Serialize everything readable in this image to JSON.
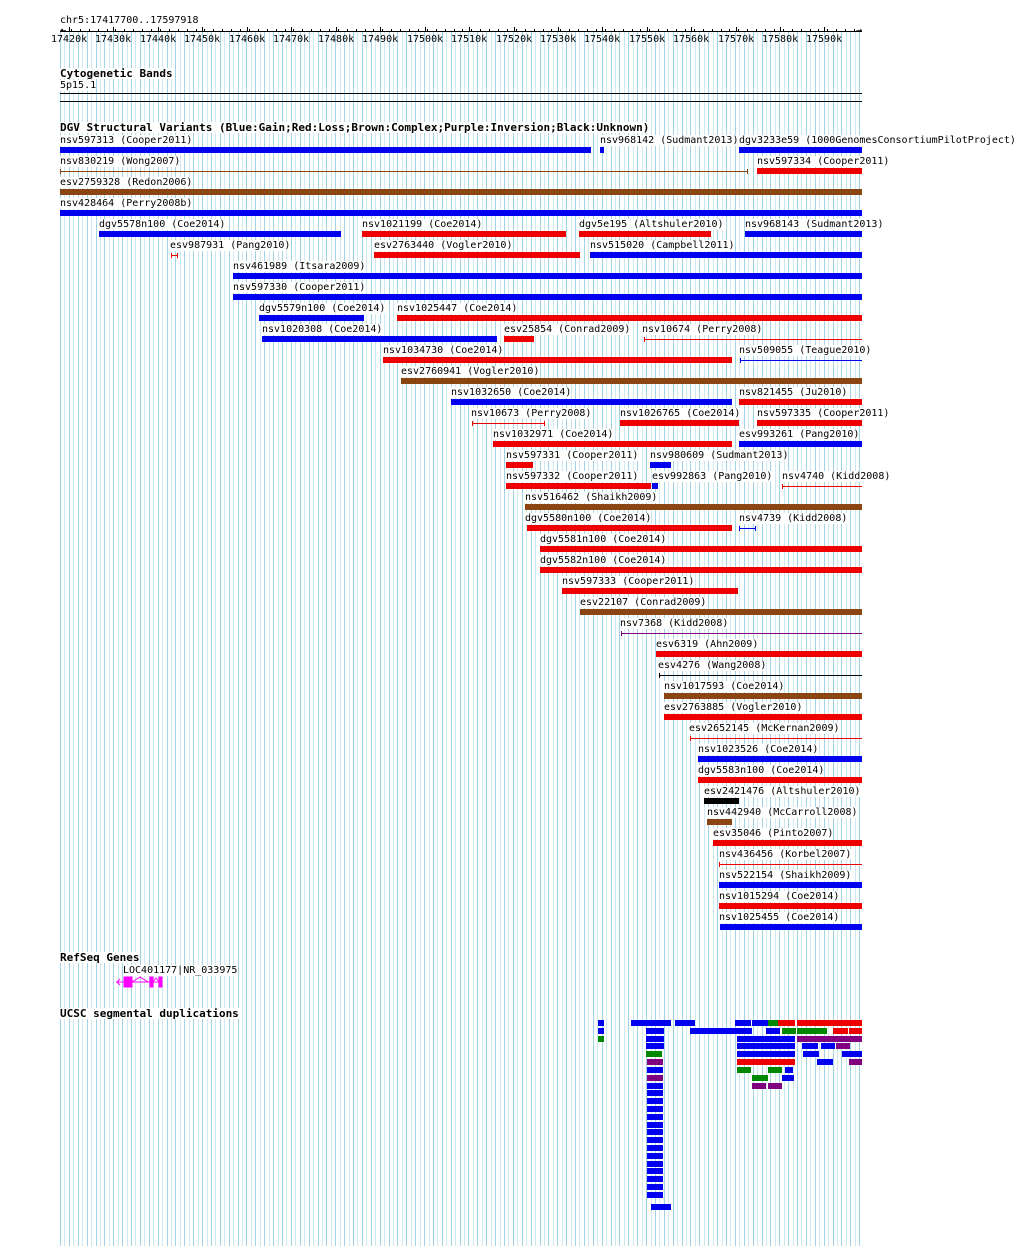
{
  "browser": {
    "position_label": "chr5:17417700..17597918",
    "ruler_labels": [
      "17420k",
      "17430k",
      "17440k",
      "17450k",
      "17460k",
      "17470k",
      "17480k",
      "17490k",
      "17500k",
      "17510k",
      "17520k",
      "17530k",
      "17540k",
      "17550k",
      "17560k",
      "17570k",
      "17580k",
      "17590k"
    ]
  },
  "tracks": {
    "cytoband": {
      "title": "Cytogenetic Bands",
      "band": "5p15.1"
    },
    "dgv": {
      "title": "DGV Structural Variants (Blue:Gain;Red:Loss;Brown:Complex;Purple:Inversion;Black:Unknown)",
      "colors": {
        "gain": "#0000ee",
        "loss": "#ee0000",
        "complex": "#8b4513",
        "inversion": "#800080",
        "unknown": "#000000"
      }
    },
    "refseq": {
      "title": "RefSeq Genes",
      "gene_label": "LOC401177|NR_033975",
      "color": "#ff00ff"
    },
    "segdup": {
      "title": "UCSC segmental duplications",
      "colors": {
        "blue": "#0000ee",
        "green": "#008800",
        "red": "#ee0000",
        "purple": "#800080"
      }
    }
  },
  "variants": [
    {
      "label": "nsv597313 (Cooper2011)",
      "type": "gain",
      "style": "bar"
    },
    {
      "label": "nsv968142 (Sudmant2013)",
      "type": "gain",
      "style": "bar"
    },
    {
      "label": "dgv3233e59 (1000GenomesConsortiumPilotProject)",
      "type": "gain",
      "style": "bar"
    },
    {
      "label": "nsv830219 (Wong2007)",
      "type": "complex",
      "style": "line"
    },
    {
      "label": "nsv597334 (Cooper2011)",
      "type": "loss",
      "style": "bar"
    },
    {
      "label": "esv2759328 (Redon2006)",
      "type": "complex",
      "style": "bar"
    },
    {
      "label": "nsv428464 (Perry2008b)",
      "type": "gain",
      "style": "bar"
    },
    {
      "label": "dgv5578n100 (Coe2014)",
      "type": "gain",
      "style": "bar"
    },
    {
      "label": "nsv1021199 (Coe2014)",
      "type": "loss",
      "style": "bar"
    },
    {
      "label": "dgv5e195 (Altshuler2010)",
      "type": "loss",
      "style": "bar"
    },
    {
      "label": "nsv968143 (Sudmant2013)",
      "type": "gain",
      "style": "bar"
    },
    {
      "label": "esv987931 (Pang2010)",
      "type": "loss",
      "style": "line"
    },
    {
      "label": "esv2763440 (Vogler2010)",
      "type": "loss",
      "style": "bar"
    },
    {
      "label": "nsv515020 (Campbell2011)",
      "type": "gain",
      "style": "bar"
    },
    {
      "label": "nsv461989 (Itsara2009)",
      "type": "gain",
      "style": "bar"
    },
    {
      "label": "nsv597330 (Cooper2011)",
      "type": "gain",
      "style": "bar"
    },
    {
      "label": "dgv5579n100 (Coe2014)",
      "type": "gain",
      "style": "bar"
    },
    {
      "label": "nsv1025447 (Coe2014)",
      "type": "loss",
      "style": "bar"
    },
    {
      "label": "nsv1020308 (Coe2014)",
      "type": "gain",
      "style": "bar"
    },
    {
      "label": "esv25854 (Conrad2009)",
      "type": "loss",
      "style": "bar"
    },
    {
      "label": "nsv10674 (Perry2008)",
      "type": "loss",
      "style": "line"
    },
    {
      "label": "nsv1034730 (Coe2014)",
      "type": "loss",
      "style": "bar"
    },
    {
      "label": "nsv509055 (Teague2010)",
      "type": "gain",
      "style": "line"
    },
    {
      "label": "esv2760941 (Vogler2010)",
      "type": "complex",
      "style": "bar"
    },
    {
      "label": "nsv1032650 (Coe2014)",
      "type": "gain",
      "style": "bar"
    },
    {
      "label": "nsv821455 (Ju2010)",
      "type": "loss",
      "style": "bar"
    },
    {
      "label": "nsv10673 (Perry2008)",
      "type": "loss",
      "style": "line"
    },
    {
      "label": "nsv1026765 (Coe2014)",
      "type": "loss",
      "style": "bar"
    },
    {
      "label": "nsv597335 (Cooper2011)",
      "type": "loss",
      "style": "bar"
    },
    {
      "label": "nsv1032971 (Coe2014)",
      "type": "loss",
      "style": "bar"
    },
    {
      "label": "esv993261 (Pang2010)",
      "type": "gain",
      "style": "bar"
    },
    {
      "label": "nsv597331 (Cooper2011)",
      "type": "loss",
      "style": "bar"
    },
    {
      "label": "nsv980609 (Sudmant2013)",
      "type": "gain",
      "style": "bar"
    },
    {
      "label": "nsv597332 (Cooper2011)",
      "type": "loss",
      "style": "bar"
    },
    {
      "label": "esv992863 (Pang2010)",
      "type": "gain",
      "style": "bar"
    },
    {
      "label": "nsv4740 (Kidd2008)",
      "type": "loss",
      "style": "line"
    },
    {
      "label": "nsv516462 (Shaikh2009)",
      "type": "complex",
      "style": "bar"
    },
    {
      "label": "dgv5580n100 (Coe2014)",
      "type": "loss",
      "style": "bar"
    },
    {
      "label": "nsv4739 (Kidd2008)",
      "type": "gain",
      "style": "line"
    },
    {
      "label": "dgv5581n100 (Coe2014)",
      "type": "loss",
      "style": "bar"
    },
    {
      "label": "dgv5582n100 (Coe2014)",
      "type": "loss",
      "style": "bar"
    },
    {
      "label": "nsv597333 (Cooper2011)",
      "type": "loss",
      "style": "bar"
    },
    {
      "label": "esv22107 (Conrad2009)",
      "type": "complex",
      "style": "bar"
    },
    {
      "label": "nsv7368 (Kidd2008)",
      "type": "inversion",
      "style": "line"
    },
    {
      "label": "esv6319 (Ahn2009)",
      "type": "loss",
      "style": "bar"
    },
    {
      "label": "esv4276 (Wang2008)",
      "type": "unknown",
      "style": "line"
    },
    {
      "label": "nsv1017593 (Coe2014)",
      "type": "complex",
      "style": "bar"
    },
    {
      "label": "esv2763885 (Vogler2010)",
      "type": "loss",
      "style": "bar"
    },
    {
      "label": "esv2652145 (McKernan2009)",
      "type": "loss",
      "style": "line"
    },
    {
      "label": "nsv1023526 (Coe2014)",
      "type": "gain",
      "style": "bar"
    },
    {
      "label": "dgv5583n100 (Coe2014)",
      "type": "loss",
      "style": "bar"
    },
    {
      "label": "esv2421476 (Altshuler2010)",
      "type": "unknown",
      "style": "bar"
    },
    {
      "label": "nsv442940 (McCarroll2008)",
      "type": "complex",
      "style": "bar"
    },
    {
      "label": "esv35046 (Pinto2007)",
      "type": "loss",
      "style": "bar"
    },
    {
      "label": "nsv436456 (Korbel2007)",
      "type": "loss",
      "style": "line"
    },
    {
      "label": "nsv522154 (Shaikh2009)",
      "type": "gain",
      "style": "bar"
    },
    {
      "label": "nsv1015294 (Coe2014)",
      "type": "loss",
      "style": "bar"
    },
    {
      "label": "nsv1025455 (Coe2014)",
      "type": "gain",
      "style": "bar"
    }
  ],
  "segdups": [
    "blue",
    "blue",
    "blue",
    "blue",
    "blue",
    "green",
    "red",
    "red",
    "red",
    "blue",
    "blue",
    "blue",
    "blue",
    "green",
    "green",
    "red",
    "red",
    "green",
    "blue",
    "blue",
    "purple",
    "purple",
    "blue",
    "blue",
    "blue",
    "blue",
    "purple",
    "green",
    "blue",
    "blue",
    "blue",
    "purple",
    "red",
    "blue",
    "purple",
    "blue",
    "green",
    "green",
    "blue",
    "purple",
    "green",
    "blue",
    "blue",
    "purple",
    "purple",
    "blue",
    "blue",
    "blue",
    "blue",
    "blue",
    "blue",
    "blue",
    "blue",
    "blue",
    "blue",
    "blue",
    "blue",
    "blue",
    "blue",
    "blue",
    "blue",
    "blue",
    "blue"
  ]
}
